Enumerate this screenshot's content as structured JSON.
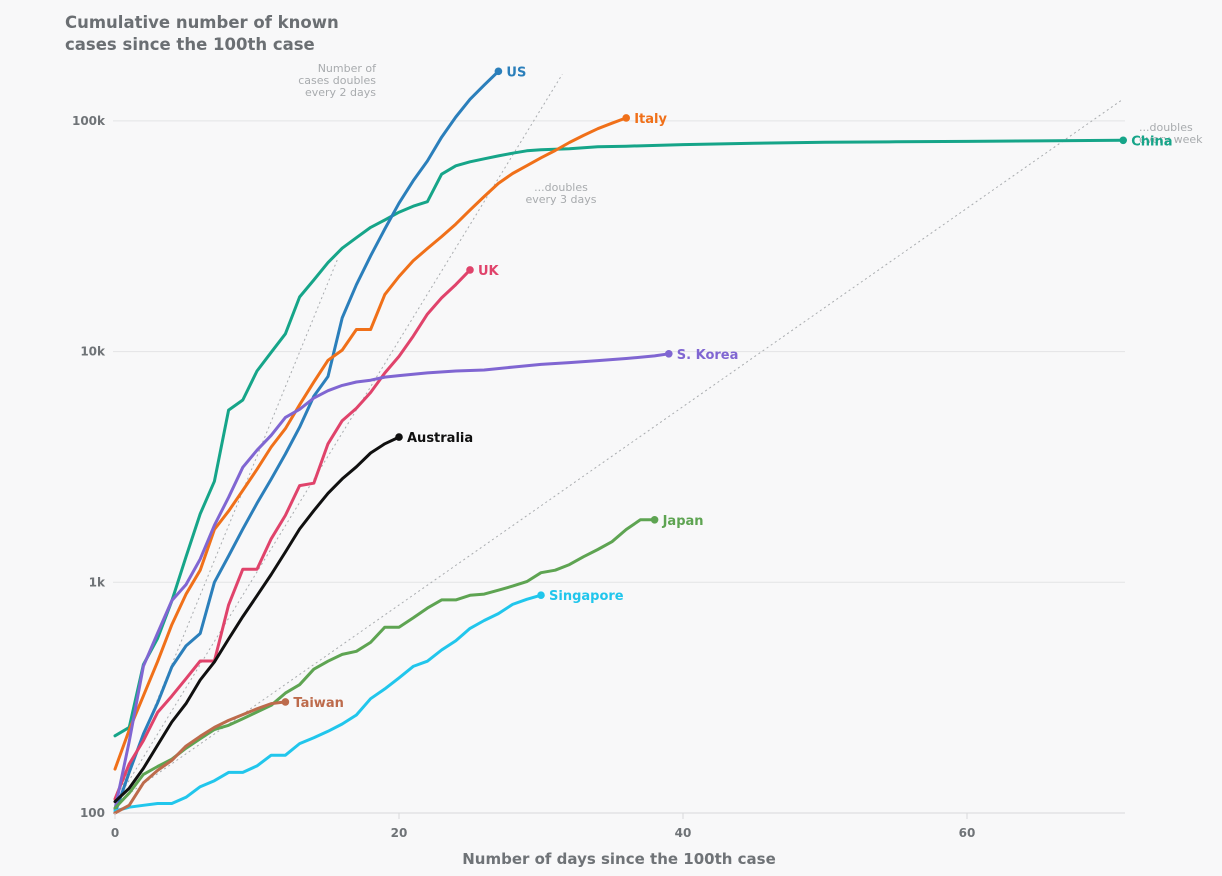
{
  "chart_data": {
    "type": "line",
    "title": "Cumulative number of known cases since the 100th case",
    "xlabel": "Number of days since the 100th case",
    "ylabel": "",
    "yscale": "log",
    "xlim": [
      0,
      71
    ],
    "ylim": [
      100,
      200000
    ],
    "xticks": [
      0,
      20,
      40,
      60
    ],
    "xtick_labels": [
      "0",
      "20",
      "40",
      "60"
    ],
    "yticks": [
      100,
      1000,
      10000,
      100000
    ],
    "ytick_labels": [
      "100",
      "1k",
      "10k",
      "100k"
    ],
    "grid": "horizontal",
    "reference_lines": [
      {
        "label": "Number of cases doubles every 2 days",
        "doubling_days": 2
      },
      {
        "label": "...doubles every 3 days",
        "doubling_days": 3
      },
      {
        "label": "...doubles every week",
        "doubling_days": 7
      }
    ],
    "series": [
      {
        "name": "China",
        "color": "#16a589",
        "x": [
          0,
          1,
          2,
          3,
          4,
          5,
          6,
          7,
          8,
          9,
          10,
          11,
          12,
          13,
          14,
          15,
          16,
          17,
          18,
          19,
          20,
          21,
          22,
          23,
          24,
          25,
          26,
          27,
          28,
          29,
          30,
          32,
          34,
          36,
          40,
          45,
          50,
          55,
          60,
          65,
          71
        ],
        "values": [
          216,
          235,
          440,
          571,
          830,
          1290,
          1980,
          2740,
          5580,
          6170,
          8240,
          9927,
          11950,
          17240,
          20440,
          24320,
          28060,
          31160,
          34550,
          37200,
          40200,
          42700,
          44650,
          58760,
          63850,
          66490,
          68500,
          70550,
          72440,
          74190,
          75000,
          75700,
          77200,
          77660,
          78900,
          80000,
          80800,
          81200,
          81500,
          81900,
          82400
        ]
      },
      {
        "name": "US",
        "color": "#2b7fbb",
        "x": [
          0,
          1,
          2,
          3,
          4,
          5,
          6,
          7,
          8,
          9,
          10,
          11,
          12,
          13,
          14,
          15,
          16,
          17,
          18,
          19,
          20,
          21,
          22,
          23,
          24,
          25,
          26,
          27
        ],
        "values": [
          100,
          150,
          220,
          300,
          430,
          530,
          600,
          1000,
          1300,
          1700,
          2200,
          2800,
          3600,
          4700,
          6400,
          7800,
          14000,
          19500,
          26000,
          34000,
          44000,
          55000,
          67000,
          85000,
          104000,
          124000,
          143000,
          164000
        ]
      },
      {
        "name": "Italy",
        "color": "#f07019",
        "x": [
          0,
          1,
          2,
          3,
          4,
          5,
          6,
          7,
          8,
          9,
          10,
          11,
          12,
          13,
          14,
          15,
          16,
          17,
          18,
          19,
          20,
          21,
          22,
          23,
          24,
          25,
          26,
          27,
          28,
          29,
          30,
          31,
          32,
          33,
          34,
          35,
          36
        ],
        "values": [
          155,
          229,
          322,
          453,
          655,
          888,
          1128,
          1694,
          2036,
          2502,
          3089,
          3858,
          4636,
          5883,
          7375,
          9172,
          10149,
          12462,
          12462,
          17660,
          21157,
          24747,
          27980,
          31506,
          35713,
          41035,
          47021,
          53578,
          59138,
          63927,
          69176,
          74386,
          80589,
          86498,
          92472,
          97689,
          103000
        ]
      },
      {
        "name": "UK",
        "color": "#e0436b",
        "x": [
          0,
          1,
          2,
          3,
          4,
          5,
          6,
          7,
          8,
          9,
          10,
          11,
          12,
          13,
          14,
          15,
          16,
          17,
          18,
          19,
          20,
          21,
          22,
          23,
          24,
          25
        ],
        "values": [
          115,
          163,
          206,
          273,
          321,
          382,
          456,
          456,
          798,
          1140,
          1140,
          1543,
          1950,
          2626,
          2689,
          3983,
          5018,
          5683,
          6650,
          8077,
          9529,
          11658,
          14543,
          17089,
          19522,
          22600
        ]
      },
      {
        "name": "S. Korea",
        "color": "#8066d2",
        "x": [
          0,
          1,
          2,
          3,
          4,
          5,
          6,
          7,
          8,
          9,
          10,
          11,
          12,
          13,
          14,
          15,
          16,
          17,
          18,
          19,
          20,
          22,
          24,
          26,
          28,
          30,
          32,
          34,
          36,
          38,
          39
        ],
        "values": [
          104,
          204,
          433,
          602,
          833,
          977,
          1261,
          1766,
          2337,
          3150,
          3736,
          4335,
          5186,
          5621,
          6284,
          6767,
          7134,
          7382,
          7513,
          7755,
          7869,
          8086,
          8236,
          8320,
          8565,
          8799,
          8961,
          9137,
          9332,
          9583,
          9786
        ]
      },
      {
        "name": "Australia",
        "color": "#101010",
        "x": [
          0,
          1,
          2,
          3,
          4,
          5,
          6,
          7,
          8,
          9,
          10,
          11,
          12,
          13,
          14,
          15,
          16,
          17,
          18,
          19,
          20
        ],
        "values": [
          112,
          128,
          156,
          197,
          248,
          298,
          377,
          452,
          568,
          710,
          875,
          1081,
          1353,
          1703,
          2044,
          2431,
          2806,
          3166,
          3635,
          3984,
          4260
        ]
      },
      {
        "name": "Japan",
        "color": "#5ea452",
        "x": [
          0,
          1,
          2,
          3,
          4,
          5,
          6,
          7,
          8,
          9,
          10,
          11,
          12,
          13,
          14,
          15,
          16,
          17,
          18,
          19,
          20,
          21,
          22,
          23,
          24,
          25,
          26,
          27,
          28,
          29,
          30,
          31,
          32,
          33,
          34,
          35,
          36,
          37,
          38
        ],
        "values": [
          105,
          122,
          147,
          159,
          171,
          191,
          210,
          230,
          240,
          256,
          274,
          293,
          331,
          360,
          420,
          455,
          487,
          502,
          549,
          639,
          639,
          701,
          773,
          839,
          839,
          878,
          889,
          924,
          963,
          1007,
          1101,
          1128,
          1193,
          1291,
          1387,
          1499,
          1693,
          1866,
          1866
        ]
      },
      {
        "name": "Singapore",
        "color": "#21c6ec",
        "x": [
          0,
          1,
          2,
          3,
          4,
          5,
          6,
          7,
          8,
          9,
          10,
          11,
          12,
          13,
          14,
          15,
          16,
          17,
          18,
          19,
          20,
          21,
          22,
          23,
          24,
          25,
          26,
          27,
          28,
          29,
          30
        ],
        "values": [
          102,
          106,
          108,
          110,
          110,
          117,
          130,
          138,
          150,
          150,
          160,
          178,
          178,
          200,
          212,
          226,
          243,
          266,
          313,
          345,
          385,
          432,
          455,
          509,
          558,
          631,
          683,
          732,
          802,
          844,
          879
        ]
      },
      {
        "name": "Taiwan",
        "color": "#bd6b4c",
        "x": [
          0,
          1,
          2,
          3,
          4,
          5,
          6,
          7,
          8,
          9,
          10,
          11,
          12
        ],
        "values": [
          100,
          108,
          135,
          153,
          169,
          195,
          215,
          235,
          252,
          267,
          283,
          298,
          303
        ]
      }
    ]
  }
}
